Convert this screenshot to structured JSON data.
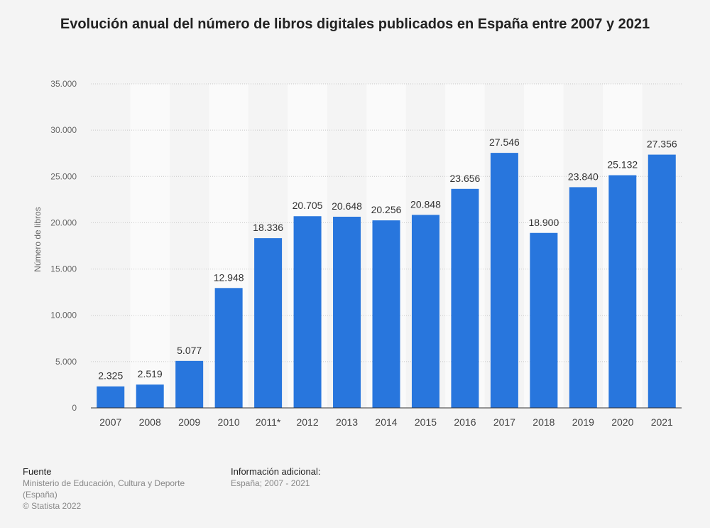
{
  "title": "Evolución anual del número de libros digitales publicados en España entre 2007 y 2021",
  "footer": {
    "source_heading": "Fuente",
    "source_text": "Ministerio de Educación, Cultura y Deporte (España)",
    "copyright": "© Statista 2022",
    "info_heading": "Información adicional:",
    "info_text": "España; 2007 - 2021"
  },
  "colors": {
    "bar": "#2876dd",
    "band": "#fafafa",
    "background": "#f4f4f4"
  },
  "chart_data": {
    "type": "bar",
    "title": "Evolución anual del número de libros digitales publicados en España entre 2007 y 2021",
    "xlabel": "",
    "ylabel": "Número de libros",
    "categories": [
      "2007",
      "2008",
      "2009",
      "2010",
      "2011*",
      "2012",
      "2013",
      "2014",
      "2015",
      "2016",
      "2017",
      "2018",
      "2019",
      "2020",
      "2021"
    ],
    "values": [
      2325,
      2519,
      5077,
      12948,
      18336,
      20705,
      20648,
      20256,
      20848,
      23656,
      27546,
      18900,
      23840,
      25132,
      27356
    ],
    "value_labels": [
      "2.325",
      "2.519",
      "5.077",
      "12.948",
      "18.336",
      "20.705",
      "20.648",
      "20.256",
      "20.848",
      "23.656",
      "27.546",
      "18.900",
      "23.840",
      "25.132",
      "27.356"
    ],
    "ylim": [
      0,
      35000
    ],
    "yticks": [
      0,
      5000,
      10000,
      15000,
      20000,
      25000,
      30000,
      35000
    ],
    "ytick_labels": [
      "0",
      "5.000",
      "10.000",
      "15.000",
      "20.000",
      "25.000",
      "30.000",
      "35.000"
    ],
    "grid": true,
    "legend": "none"
  }
}
